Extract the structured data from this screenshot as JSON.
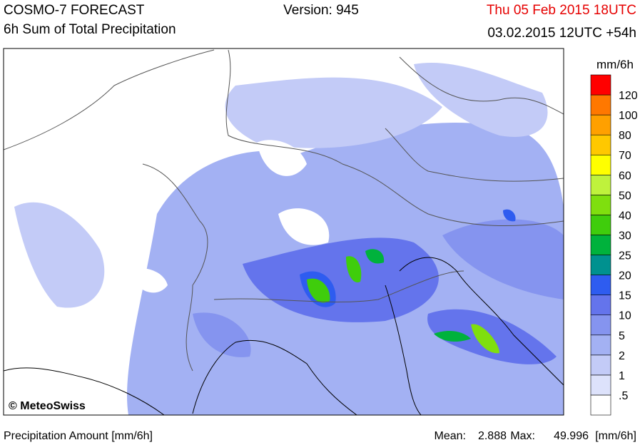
{
  "header": {
    "title": "COSMO-7 FORECAST",
    "subtitle": "6h Sum of Total Precipitation",
    "version": "Version: 945",
    "valid_time": "Thu 05 Feb 2015 18UTC",
    "run_time": "03.02.2015 12UTC +54h"
  },
  "legend": {
    "unit": "mm/6h",
    "labels": [
      ".5",
      "1",
      "2",
      "5",
      "10",
      "15",
      "20",
      "25",
      "30",
      "40",
      "50",
      "60",
      "70",
      "80",
      "100",
      "120"
    ],
    "colors": [
      "#ffffff",
      "#dde2fb",
      "#c3cbf7",
      "#a3b1f3",
      "#8594ef",
      "#6474ec",
      "#2e5cf0",
      "#00918f",
      "#00b23c",
      "#3fcd0c",
      "#7fdf0e",
      "#bff23c",
      "#ffff00",
      "#ffc800",
      "#ffa000",
      "#ff7800",
      "#ff0000"
    ]
  },
  "map": {
    "copyright": "© MeteoSwiss"
  },
  "footer": {
    "quantity": "Precipitation Amount [mm/6h]",
    "mean_label": "Mean:",
    "mean": 2.888,
    "max_label": "Max:",
    "max": 49.996,
    "unit": "[mm/6h]"
  }
}
